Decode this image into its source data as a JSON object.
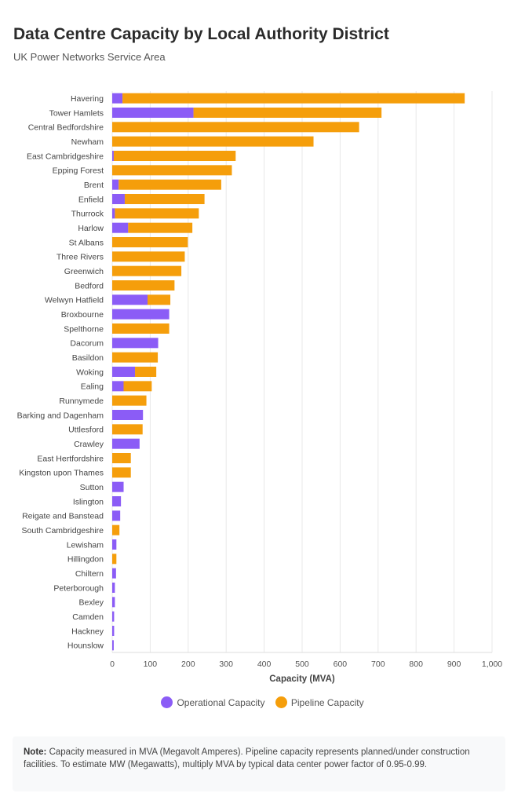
{
  "chart_data": {
    "type": "bar",
    "orientation": "horizontal",
    "stacked": true,
    "title": "Data Centre Capacity by Local Authority District",
    "subtitle": "UK Power Networks Service Area",
    "xlabel": "Capacity (MVA)",
    "ylabel": "",
    "xlim": [
      0,
      1000
    ],
    "xticks": [
      "0",
      "100",
      "200",
      "300",
      "400",
      "500",
      "600",
      "700",
      "800",
      "900",
      "1,000"
    ],
    "grid": true,
    "legend_position": "bottom",
    "categories": [
      "Havering",
      "Tower Hamlets",
      "Central Bedfordshire",
      "Newham",
      "East Cambridgeshire",
      "Epping Forest",
      "Brent",
      "Enfield",
      "Thurrock",
      "Harlow",
      "St Albans",
      "Three Rivers",
      "Greenwich",
      "Bedford",
      "Welwyn Hatfield",
      "Broxbourne",
      "Spelthorne",
      "Dacorum",
      "Basildon",
      "Woking",
      "Ealing",
      "Runnymede",
      "Barking and Dagenham",
      "Uttlesford",
      "Crawley",
      "East Hertfordshire",
      "Kingston upon Thames",
      "Sutton",
      "Islington",
      "Reigate and Banstead",
      "South Cambridgeshire",
      "Lewisham",
      "Hillingdon",
      "Chiltern",
      "Peterborough",
      "Bexley",
      "Camden",
      "Hackney",
      "Hounslow"
    ],
    "series": [
      {
        "name": "Operational Capacity",
        "color": "#8b5cf6",
        "values": [
          27,
          214,
          0,
          0,
          4,
          0,
          17,
          33,
          7,
          42,
          0,
          0,
          0,
          0,
          93,
          150,
          0,
          121,
          0,
          60,
          30,
          0,
          81,
          0,
          72,
          0,
          0,
          30,
          23,
          21,
          0,
          11,
          0,
          10,
          7,
          7,
          5,
          5,
          4
        ]
      },
      {
        "name": "Pipeline Capacity",
        "color": "#f59e0b",
        "values": [
          901,
          495,
          650,
          530,
          321,
          315,
          270,
          210,
          221,
          169,
          199,
          191,
          182,
          164,
          60,
          0,
          150,
          0,
          120,
          56,
          74,
          90,
          0,
          80,
          0,
          49,
          49,
          0,
          0,
          0,
          19,
          0,
          11,
          0,
          0,
          0,
          0,
          0,
          0
        ]
      }
    ]
  },
  "note": {
    "label": "Note:",
    "text": " Capacity measured in MVA (Megavolt Amperes). Pipeline capacity represents planned/under construction facilities. To estimate MW (Megawatts), multiply MVA by typical data center power factor of 0.95-0.99."
  }
}
